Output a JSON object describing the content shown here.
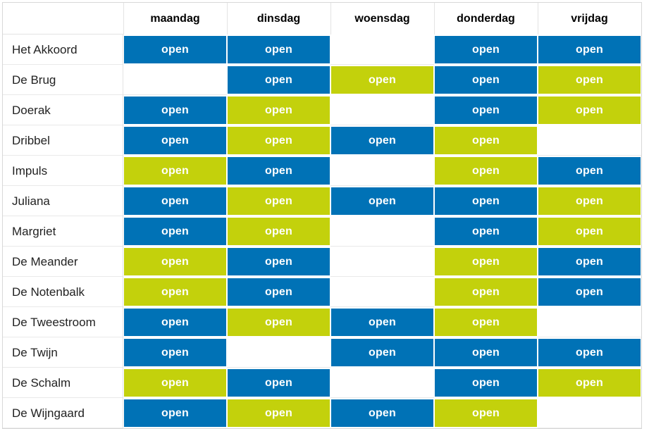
{
  "colors": {
    "open_blue": "#0072b6",
    "open_green": "#c3d10c",
    "open_text": "#ffffff",
    "header_text": "#000000",
    "name_text": "#222222",
    "grid_line": "#e3e3e3"
  },
  "chart_data": {
    "type": "table",
    "title": "",
    "open_label": "open",
    "day_headers": [
      "maandag",
      "dinsdag",
      "woensdag",
      "donderdag",
      "vrijdag"
    ],
    "legend": {
      "blue": "open (blue cell)",
      "green": "open (green cell)",
      "none": "closed (empty cell)"
    },
    "rows": [
      {
        "name": "Het Akkoord",
        "days": [
          "blue",
          "blue",
          "none",
          "blue",
          "blue"
        ]
      },
      {
        "name": "De Brug",
        "days": [
          "none",
          "blue",
          "green",
          "blue",
          "green"
        ]
      },
      {
        "name": "Doerak",
        "days": [
          "blue",
          "green",
          "none",
          "blue",
          "green"
        ]
      },
      {
        "name": "Dribbel",
        "days": [
          "blue",
          "green",
          "blue",
          "green",
          "none"
        ]
      },
      {
        "name": "Impuls",
        "days": [
          "green",
          "blue",
          "none",
          "green",
          "blue"
        ]
      },
      {
        "name": "Juliana",
        "days": [
          "blue",
          "green",
          "blue",
          "blue",
          "green"
        ]
      },
      {
        "name": "Margriet",
        "days": [
          "blue",
          "green",
          "none",
          "blue",
          "green"
        ]
      },
      {
        "name": "De Meander",
        "days": [
          "green",
          "blue",
          "none",
          "green",
          "blue"
        ]
      },
      {
        "name": "De Notenbalk",
        "days": [
          "green",
          "blue",
          "none",
          "green",
          "blue"
        ]
      },
      {
        "name": "De Tweestroom",
        "days": [
          "blue",
          "green",
          "blue",
          "green",
          "none"
        ]
      },
      {
        "name": "De Twijn",
        "days": [
          "blue",
          "none",
          "blue",
          "blue",
          "blue"
        ]
      },
      {
        "name": "De Schalm",
        "days": [
          "green",
          "blue",
          "none",
          "blue",
          "green"
        ]
      },
      {
        "name": "De Wijngaard",
        "days": [
          "blue",
          "green",
          "blue",
          "green",
          "none"
        ]
      }
    ]
  }
}
